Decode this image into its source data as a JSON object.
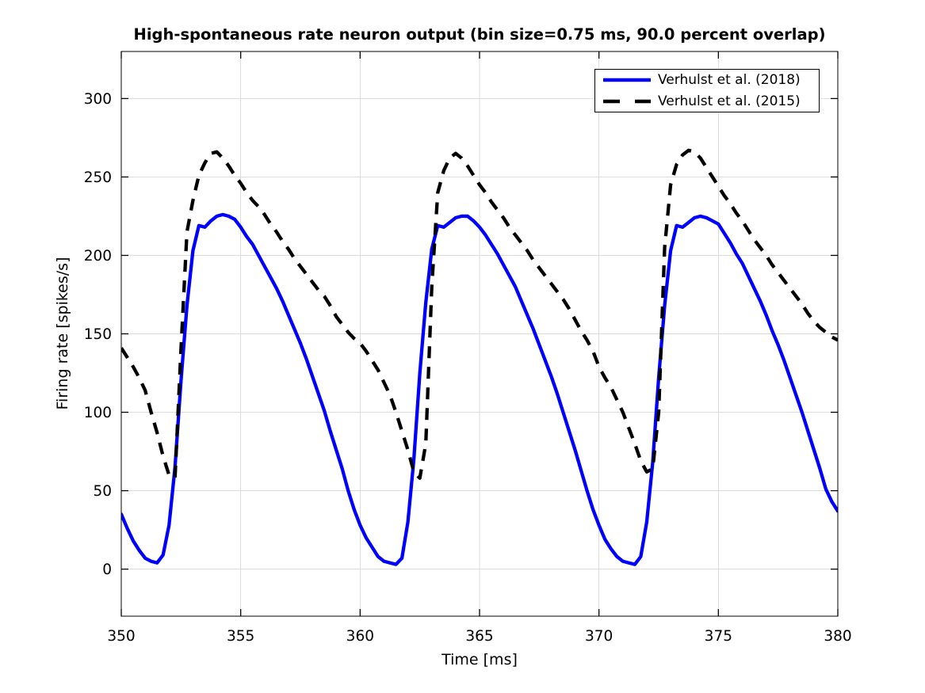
{
  "chart_data": {
    "type": "line",
    "title": "High-spontaneous rate neuron output (bin size=0.75 ms, 90.0 percent overlap)",
    "xlabel": "Time [ms]",
    "ylabel": "Firing rate [spikes/s]",
    "xlim": [
      350,
      380
    ],
    "ylim": [
      -30,
      330
    ],
    "xticks": [
      350,
      355,
      360,
      365,
      370,
      375,
      380
    ],
    "yticks": [
      0,
      50,
      100,
      150,
      200,
      250,
      300
    ],
    "grid": true,
    "grid_color": "#dcdcdc",
    "axis_color": "#000000",
    "background_color": "#ffffff",
    "legend_position": "top-right",
    "x_start": 350,
    "x_step": 0.25,
    "series": [
      {
        "name": "Verhulst et al. (2018)",
        "color": "#0000ff",
        "style": "solid",
        "width": 4.3,
        "values": [
          35,
          26,
          18,
          12,
          7,
          5,
          4,
          9,
          28,
          65,
          120,
          168,
          203,
          219,
          218,
          222,
          225,
          226,
          225,
          223,
          218,
          212,
          207,
          200,
          193,
          186,
          179,
          171,
          162,
          153,
          144,
          134,
          123,
          112,
          101,
          88,
          76,
          64,
          50,
          38,
          28,
          20,
          14,
          8,
          5,
          4,
          3,
          7,
          30,
          70,
          125,
          170,
          204,
          219,
          218,
          221,
          224,
          225,
          225,
          222,
          218,
          213,
          207,
          201,
          194,
          187,
          180,
          171,
          162,
          153,
          143,
          133,
          123,
          112,
          100,
          88,
          76,
          63,
          50,
          38,
          28,
          19,
          13,
          8,
          5,
          4,
          3,
          8,
          30,
          68,
          122,
          168,
          203,
          219,
          218,
          221,
          224,
          225,
          224,
          222,
          220,
          214,
          208,
          201,
          195,
          187,
          179,
          171,
          162,
          152,
          143,
          133,
          122,
          111,
          100,
          88,
          76,
          64,
          51,
          43,
          37
        ]
      },
      {
        "name": "Verhulst et al. (2015)",
        "color": "#000000",
        "style": "dashed",
        "width": 4.3,
        "values": [
          141,
          135,
          129,
          122,
          114,
          100,
          87,
          72,
          60,
          58,
          140,
          215,
          235,
          251,
          259,
          265,
          266,
          262,
          257,
          251,
          246,
          240,
          235,
          231,
          226,
          220,
          215,
          209,
          204,
          198,
          193,
          188,
          183,
          178,
          174,
          168,
          161,
          156,
          151,
          147,
          144,
          139,
          133,
          127,
          119,
          111,
          100,
          88,
          76,
          62,
          58,
          80,
          180,
          240,
          254,
          262,
          265,
          262,
          257,
          251,
          245,
          240,
          234,
          229,
          224,
          218,
          213,
          208,
          203,
          197,
          192,
          187,
          182,
          177,
          172,
          166,
          159,
          152,
          146,
          139,
          129,
          122,
          116,
          108,
          100,
          90,
          80,
          69,
          62,
          64,
          100,
          205,
          245,
          258,
          264,
          267,
          266,
          262,
          256,
          250,
          244,
          238,
          233,
          227,
          222,
          216,
          210,
          205,
          200,
          194,
          189,
          184,
          179,
          174,
          169,
          163,
          158,
          154,
          151,
          148,
          146
        ]
      }
    ]
  }
}
